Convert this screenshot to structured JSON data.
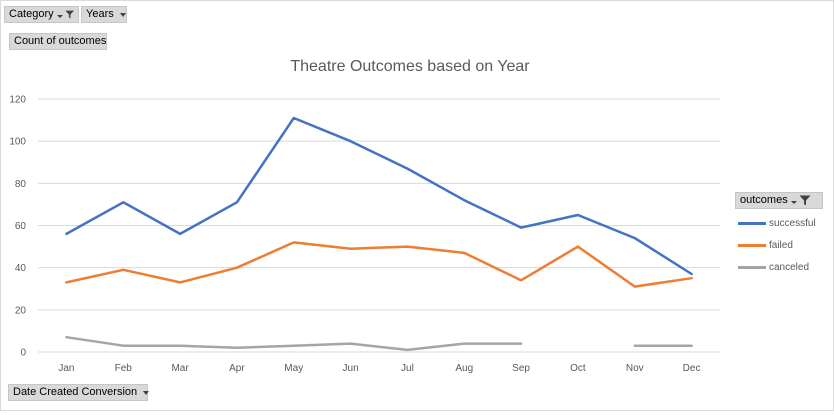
{
  "pivot_buttons": {
    "category": "Category",
    "years": "Years",
    "count": "Count of outcomes",
    "date": "Date Created Conversion",
    "outcomes": "outcomes"
  },
  "colors": {
    "successful": "#4472c4",
    "failed": "#ed7d31",
    "canceled": "#a5a5a5"
  },
  "chart_data": {
    "type": "line",
    "title": "Theatre Outcomes based on Year",
    "categories": [
      "Jan",
      "Feb",
      "Mar",
      "Apr",
      "May",
      "Jun",
      "Jul",
      "Aug",
      "Sep",
      "Oct",
      "Nov",
      "Dec"
    ],
    "ylim": [
      0,
      120
    ],
    "yticks": [
      0,
      20,
      40,
      60,
      80,
      100,
      120
    ],
    "grid": true,
    "legend_position": "right",
    "legend_title": "outcomes",
    "series": [
      {
        "name": "successful",
        "values": [
          56,
          71,
          56,
          71,
          111,
          100,
          87,
          72,
          59,
          65,
          54,
          37
        ]
      },
      {
        "name": "failed",
        "values": [
          33,
          39,
          33,
          40,
          52,
          49,
          50,
          47,
          34,
          50,
          31,
          35
        ]
      },
      {
        "name": "canceled",
        "values": [
          7,
          3,
          3,
          2,
          3,
          4,
          1,
          4,
          4,
          null,
          3,
          3
        ]
      }
    ]
  }
}
